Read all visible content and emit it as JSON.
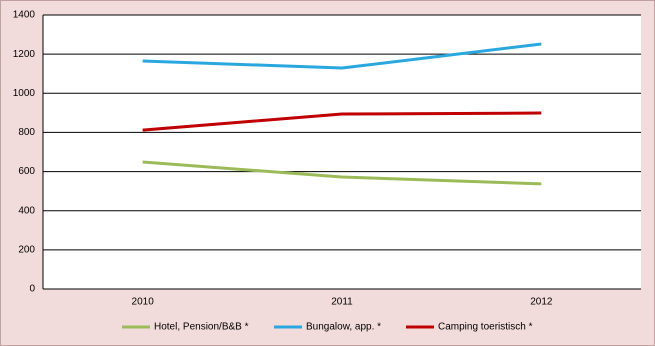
{
  "chart_data": {
    "type": "line",
    "categories": [
      "2010",
      "2011",
      "2012"
    ],
    "series": [
      {
        "name": "Hotel, Pension/B&B *",
        "color": "#9bbb59",
        "values": [
          649,
          572,
          537
        ]
      },
      {
        "name": "Bungalow, app. *",
        "color": "#29a8e0",
        "values": [
          1165,
          1129,
          1252
        ]
      },
      {
        "name": "Camping toeristisch *",
        "color": "#c00000",
        "values": [
          812,
          894,
          899
        ]
      }
    ],
    "ylim": [
      0,
      1400
    ],
    "yticks": [
      0,
      200,
      400,
      600,
      800,
      1000,
      1200,
      1400
    ],
    "grid": true,
    "legend": "bottom"
  }
}
